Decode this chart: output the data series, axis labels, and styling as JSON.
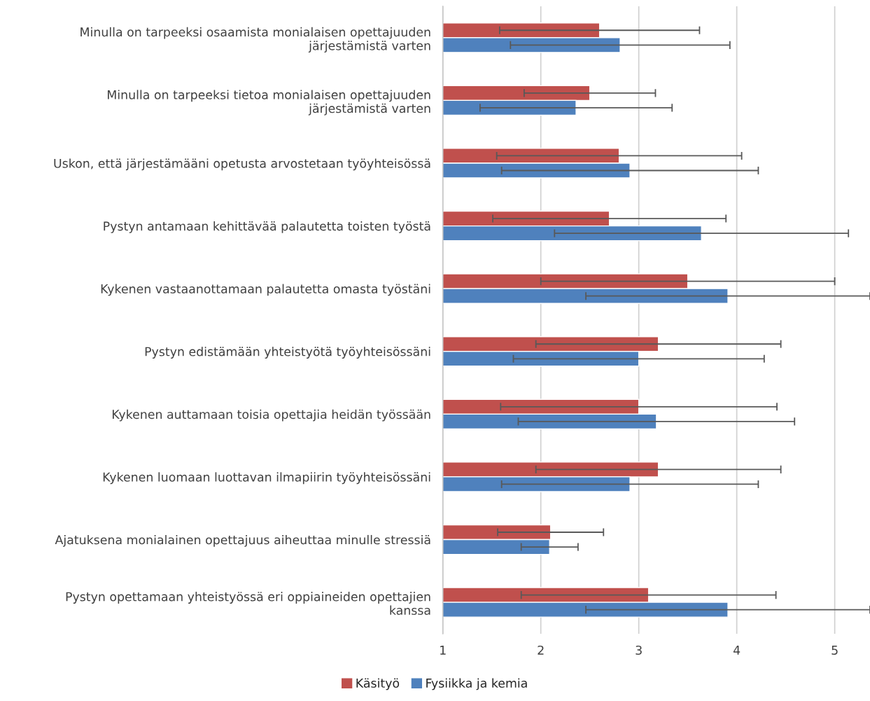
{
  "chart_data": {
    "type": "bar",
    "orientation": "horizontal",
    "categories": [
      "Minulla on tarpeeksi osaamista monialaisen opettajuuden järjestämistä varten",
      "Minulla on tarpeeksi tietoa monialaisen opettajuuden järjestämistä varten",
      "Uskon, että järjestämääni opetusta arvostetaan työyhteisössä",
      "Pystyn antamaan kehittävää palautetta toisten työstä",
      "Kykenen vastaanottamaan palautetta omasta työstäni",
      "Pystyn edistämään yhteistyötä työyhteisössäni",
      "Kykenen auttamaan toisia opettajia heidän työssään",
      "Kykenen luomaan luottavan ilmapiirin työyhteisössäni",
      "Ajatuksena monialainen opettajuus aiheuttaa minulle stressiä",
      "Pystyn opettamaan yhteistyössä eri oppiaineiden opettajien kanssa"
    ],
    "series": [
      {
        "name": "Käsityö",
        "color": "#c0504d",
        "values": [
          2.6,
          2.5,
          2.8,
          2.7,
          3.5,
          3.2,
          3.0,
          3.2,
          2.1,
          3.1
        ],
        "errors": [
          1.02,
          0.67,
          1.25,
          1.19,
          1.5,
          1.25,
          1.41,
          1.25,
          0.54,
          1.3
        ]
      },
      {
        "name": "Fysiikka ja kemia",
        "color": "#4f81bd",
        "values": [
          2.81,
          2.36,
          2.91,
          3.64,
          3.91,
          3.0,
          3.18,
          2.91,
          2.09,
          3.91
        ],
        "errors": [
          1.12,
          0.98,
          1.31,
          1.5,
          1.45,
          1.28,
          1.41,
          1.31,
          0.29,
          1.45
        ]
      }
    ],
    "xlim": [
      1,
      5.36
    ],
    "xticks": [
      1,
      2,
      3,
      4,
      5
    ],
    "grid": "x",
    "legend": "bottom"
  }
}
